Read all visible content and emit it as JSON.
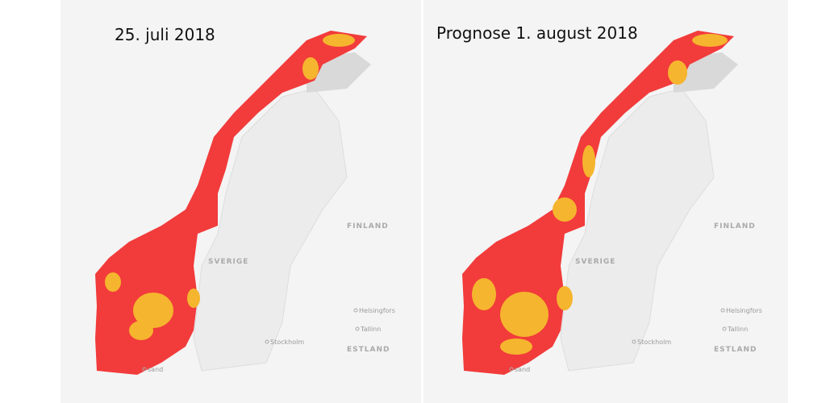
{
  "panels": [
    {
      "title": "25. juli 2018",
      "labels": [
        "FINLAND",
        "SVERIGE",
        "Helsingfors",
        "Tallinn",
        "Stockholm",
        "ESTLAND",
        "sand"
      ]
    },
    {
      "title": "Prognose 1. august 2018",
      "labels": [
        "FINLAND",
        "SVERIGE",
        "Helsingfors",
        "Tallinn",
        "Stockholm",
        "ESTLAND",
        "sand"
      ]
    }
  ]
}
